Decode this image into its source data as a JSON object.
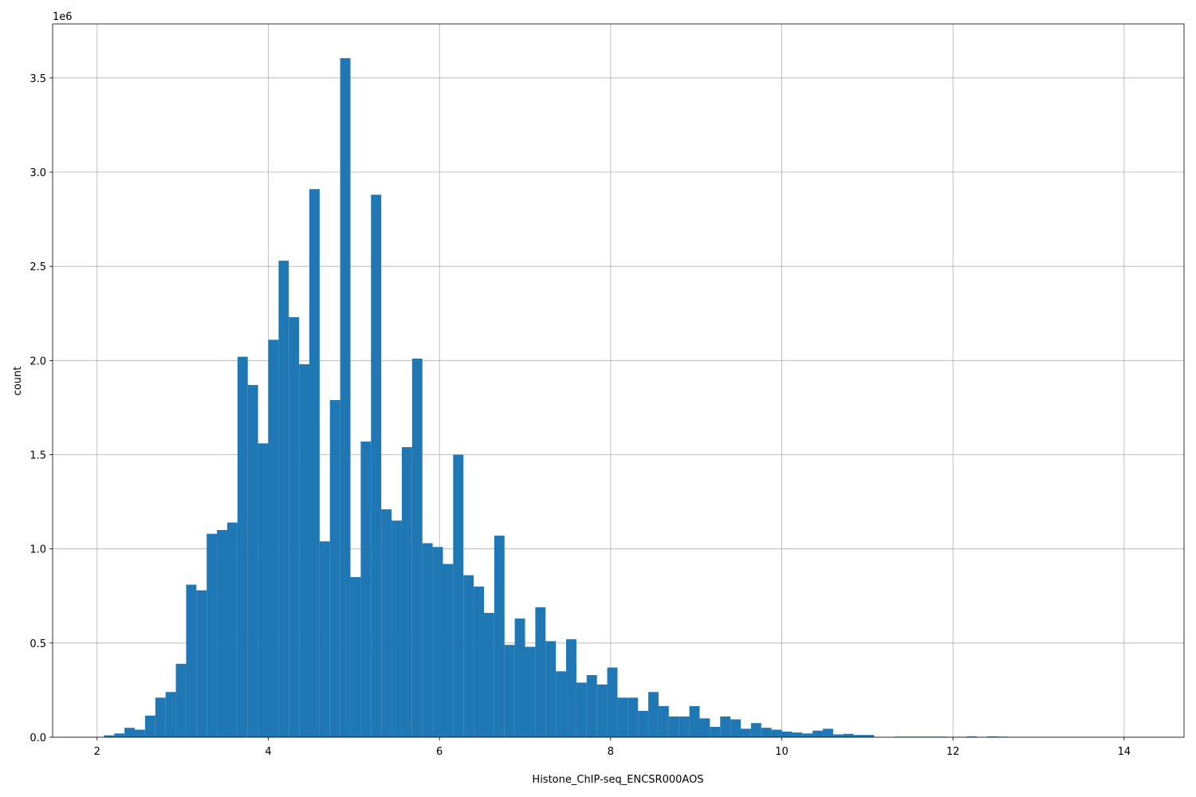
{
  "chart_data": {
    "type": "histogram",
    "x_label": "Histone_ChIP-seq_ENCSR000AOS",
    "y_label": "count",
    "y_offset_label": "1e6",
    "color": "#1f77b4",
    "grid": true,
    "bins": [
      2.08,
      2.2,
      2.32,
      2.44,
      2.56,
      2.68,
      2.8,
      2.92,
      3.04,
      3.16,
      3.28,
      3.4,
      3.52,
      3.64,
      3.76,
      3.88,
      4,
      4.12,
      4.24,
      4.36,
      4.48,
      4.6,
      4.72,
      4.84,
      4.96,
      5.08,
      5.2,
      5.32,
      5.44,
      5.56,
      5.68,
      5.8,
      5.92,
      6.04,
      6.16,
      6.28,
      6.4,
      6.52,
      6.64,
      6.76,
      6.88,
      7,
      7.12,
      7.24,
      7.36,
      7.48,
      7.6,
      7.72,
      7.84,
      7.96,
      8.08,
      8.2,
      8.32,
      8.44,
      8.56,
      8.68,
      8.8,
      8.92,
      9.04,
      9.16,
      9.28,
      9.4,
      9.52,
      9.64,
      9.76,
      9.88,
      10,
      10.12,
      10.24,
      10.36,
      10.48,
      10.6,
      10.72,
      10.84,
      10.96,
      11.08,
      11.2,
      11.32,
      11.44,
      11.56,
      11.68,
      11.8,
      11.92,
      12.04,
      12.16,
      12.28,
      12.4,
      12.52,
      12.64,
      12.76,
      12.88,
      13,
      13.12,
      13.24,
      13.36,
      13.48,
      13.6,
      13.72,
      13.84,
      13.96,
      14.08
    ],
    "counts": [
      10000,
      20000,
      50000,
      40000,
      115000,
      210000,
      240000,
      390000,
      810000,
      780000,
      1080000,
      1100000,
      1140000,
      2020000,
      1870000,
      1560000,
      2110000,
      2530000,
      2230000,
      1980000,
      2910000,
      1040000,
      1790000,
      3605000,
      850000,
      1570000,
      2880000,
      1210000,
      1150000,
      1540000,
      2010000,
      1030000,
      1010000,
      920000,
      1500000,
      860000,
      800000,
      660000,
      1070000,
      490000,
      630000,
      480000,
      690000,
      510000,
      350000,
      520000,
      290000,
      330000,
      280000,
      370000,
      210000,
      210000,
      140000,
      240000,
      165000,
      110000,
      110000,
      165000,
      100000,
      55000,
      110000,
      95000,
      45000,
      75000,
      50000,
      40000,
      30000,
      25000,
      20000,
      35000,
      45000,
      15000,
      18000,
      12000,
      12000,
      0,
      0,
      3000,
      3000,
      3000,
      3000,
      3000,
      2000,
      2000,
      4000,
      0,
      4000,
      3000,
      0,
      0,
      0,
      0,
      0,
      0,
      0,
      0,
      0,
      0,
      0,
      0
    ],
    "xlim": [
      1.48,
      14.7
    ],
    "xticks": [
      2,
      4,
      6,
      8,
      10,
      12,
      14
    ],
    "ylim": [
      0,
      3787000
    ],
    "yticks": [
      {
        "value": 0,
        "label": "0.0"
      },
      {
        "value": 500000,
        "label": "0.5"
      },
      {
        "value": 1000000,
        "label": "1.0"
      },
      {
        "value": 1500000,
        "label": "1.5"
      },
      {
        "value": 2000000,
        "label": "2.0"
      },
      {
        "value": 2500000,
        "label": "2.5"
      },
      {
        "value": 3000000,
        "label": "3.0"
      },
      {
        "value": 3500000,
        "label": "3.5"
      }
    ]
  }
}
